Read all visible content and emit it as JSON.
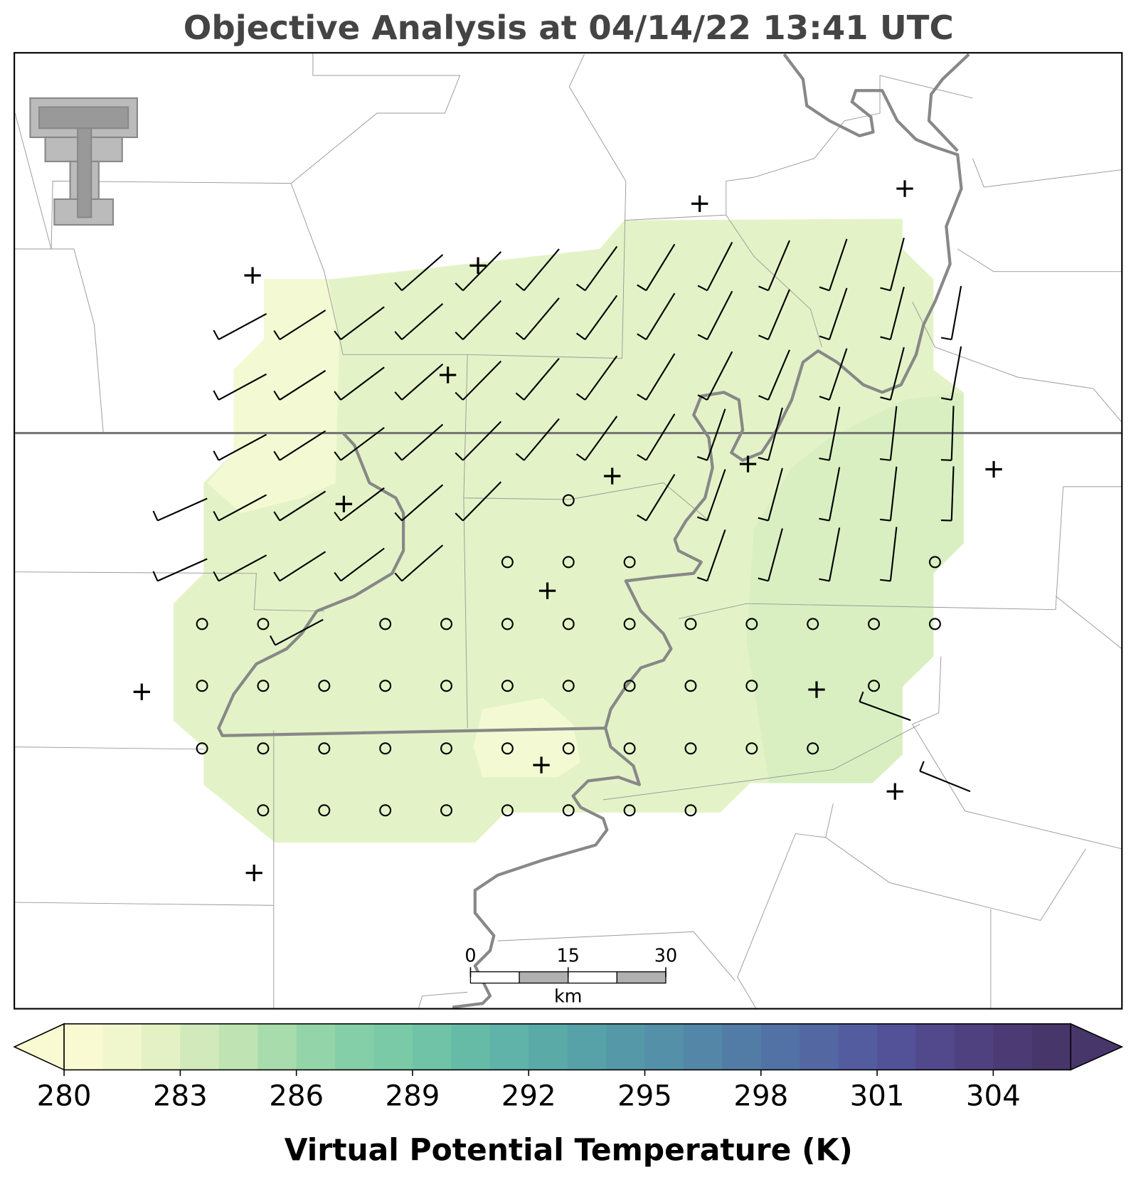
{
  "chart_data": {
    "type": "colorbar",
    "title": "Objective Analysis at 04/14/22 13:41 UTC",
    "label": "Virtual Potential Temperature (K)",
    "clim": [
      280,
      306
    ],
    "ticks": [
      280,
      283,
      286,
      289,
      292,
      295,
      298,
      301,
      304
    ],
    "extend": "both",
    "colors": [
      "#fafad2",
      "#f1f7cd",
      "#e3f1c4",
      "#d2eabb",
      "#bfe3b2",
      "#a9dcac",
      "#93d5a8",
      "#84cfa7",
      "#7acaa7",
      "#70c3a7",
      "#66bba7",
      "#5fb3a8",
      "#5aaba8",
      "#57a2a8",
      "#5599a8",
      "#5490a8",
      "#5386a7",
      "#527ca6",
      "#5272a5",
      "#5367a3",
      "#535c9f",
      "#535197",
      "#52488c",
      "#4f4080",
      "#4b3a74",
      "#47366a"
    ]
  },
  "scale_bar": {
    "ticks": [
      0,
      15,
      30
    ],
    "unit": "km"
  }
}
